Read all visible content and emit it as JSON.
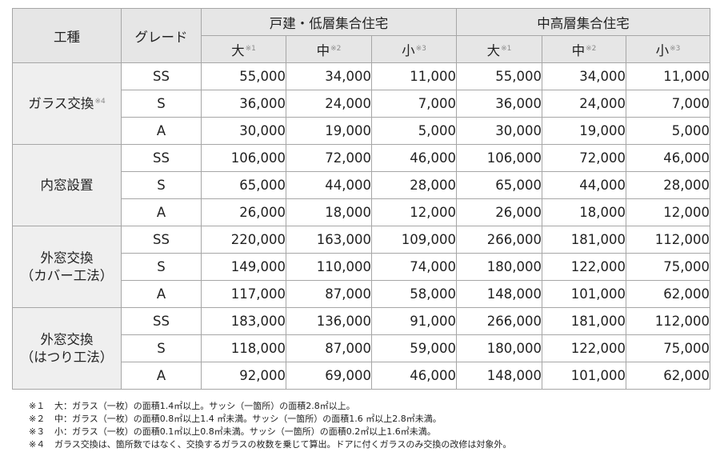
{
  "header": {
    "work_label": "工種",
    "grade_label": "グレード",
    "groups": [
      "戸建・低層集合住宅",
      "中高層集合住宅"
    ],
    "sizes": [
      {
        "label": "大",
        "ref": "※1"
      },
      {
        "label": "中",
        "ref": "※2"
      },
      {
        "label": "小",
        "ref": "※3"
      },
      {
        "label": "大",
        "ref": "※1"
      },
      {
        "label": "中",
        "ref": "※2"
      },
      {
        "label": "小",
        "ref": "※3"
      }
    ]
  },
  "sections": [
    {
      "lines": [
        "ガラス交換"
      ],
      "ref": "※4",
      "rows": [
        {
          "grade": "SS",
          "values": [
            "55,000",
            "34,000",
            "11,000",
            "55,000",
            "34,000",
            "11,000"
          ]
        },
        {
          "grade": "S",
          "values": [
            "36,000",
            "24,000",
            "7,000",
            "36,000",
            "24,000",
            "7,000"
          ]
        },
        {
          "grade": "A",
          "values": [
            "30,000",
            "19,000",
            "5,000",
            "30,000",
            "19,000",
            "5,000"
          ]
        }
      ]
    },
    {
      "lines": [
        "内窓設置"
      ],
      "ref": "",
      "rows": [
        {
          "grade": "SS",
          "values": [
            "106,000",
            "72,000",
            "46,000",
            "106,000",
            "72,000",
            "46,000"
          ]
        },
        {
          "grade": "S",
          "values": [
            "65,000",
            "44,000",
            "28,000",
            "65,000",
            "44,000",
            "28,000"
          ]
        },
        {
          "grade": "A",
          "values": [
            "26,000",
            "18,000",
            "12,000",
            "26,000",
            "18,000",
            "12,000"
          ]
        }
      ]
    },
    {
      "lines": [
        "外窓交換",
        "（カバー工法）"
      ],
      "ref": "",
      "rows": [
        {
          "grade": "SS",
          "values": [
            "220,000",
            "163,000",
            "109,000",
            "266,000",
            "181,000",
            "112,000"
          ]
        },
        {
          "grade": "S",
          "values": [
            "149,000",
            "110,000",
            "74,000",
            "180,000",
            "122,000",
            "75,000"
          ]
        },
        {
          "grade": "A",
          "values": [
            "117,000",
            "87,000",
            "58,000",
            "148,000",
            "101,000",
            "62,000"
          ]
        }
      ]
    },
    {
      "lines": [
        "外窓交換",
        "（はつり工法）"
      ],
      "ref": "",
      "rows": [
        {
          "grade": "SS",
          "values": [
            "183,000",
            "136,000",
            "91,000",
            "266,000",
            "181,000",
            "112,000"
          ]
        },
        {
          "grade": "S",
          "values": [
            "118,000",
            "87,000",
            "59,000",
            "180,000",
            "122,000",
            "75,000"
          ]
        },
        {
          "grade": "A",
          "values": [
            "92,000",
            "69,000",
            "46,000",
            "148,000",
            "101,000",
            "62,000"
          ]
        }
      ]
    }
  ],
  "notes": [
    {
      "mark": "※１",
      "text": "大：ガラス（一枚）の面積1.4㎡以上。サッシ（一箇所）の面積2.8㎡以上。"
    },
    {
      "mark": "※２",
      "text": "中：ガラス（一枚）の面積0.8㎡以上1.4 ㎡未満。サッシ（一箇所）の面積1.6 ㎡以上2.8㎡未満。"
    },
    {
      "mark": "※３",
      "text": "小：ガラス（一枚）の面積0.1㎡以上0.8㎡未満。サッシ（一箇所）の面積0.2㎡以上1.6㎡未満。"
    },
    {
      "mark": "※４",
      "text": "ガラス交換は、箇所数ではなく、交換するガラスの枚数を乗じて算出。ドアに付くガラスのみ交換の改修は対象外。"
    }
  ]
}
